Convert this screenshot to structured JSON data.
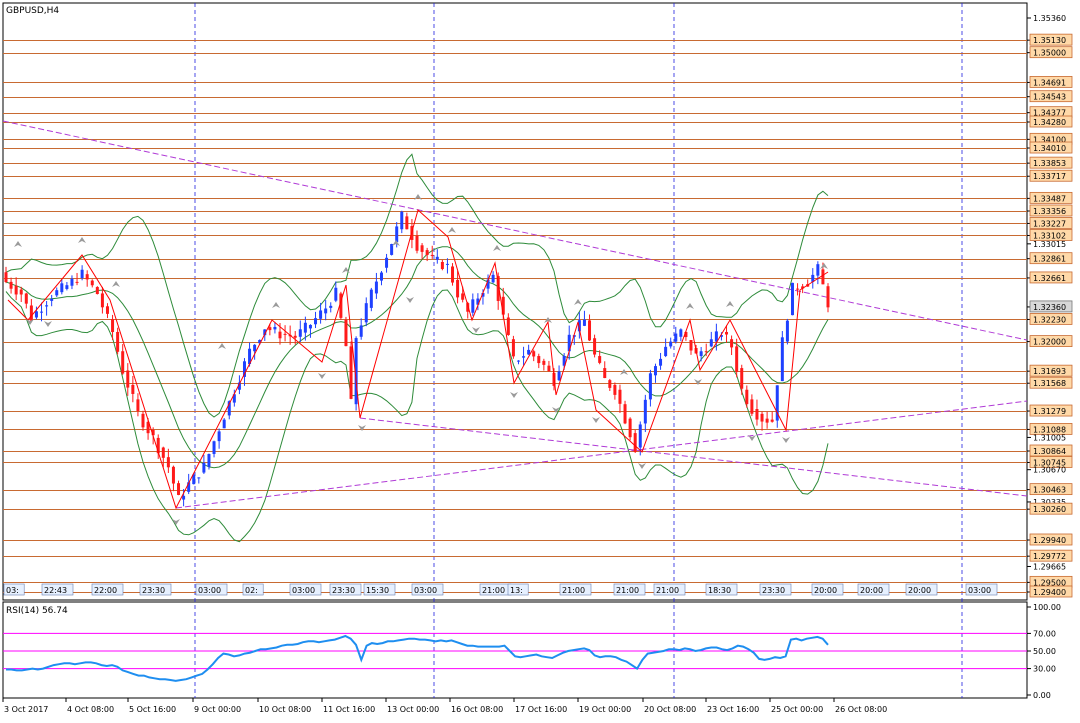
{
  "window": {
    "title": "GBPUSD,H4"
  },
  "colors": {
    "bull": "#1e40ff",
    "bear": "#ff1a1a",
    "level_line": "#c86a32",
    "trend_line": "#b03ad6",
    "zigzag": "#ff0000",
    "band": "#2e8b3a",
    "grid_v": "#2020e0",
    "rsi_line": "#1e8ef0",
    "rsi_level": "#ff00ff",
    "label_bg": "#ffd9a8"
  },
  "chart_data": {
    "type": "candlestick",
    "symbol": "GBPUSD",
    "timeframe": "H4",
    "title": "GBPUSD,H4",
    "y_axis_labels": [
      "1.35360",
      "1.35130",
      "1.35000",
      "1.34691",
      "1.34543",
      "1.34377",
      "1.34280",
      "1.34100",
      "1.34010",
      "1.33853",
      "1.33717",
      "1.33487",
      "1.33356",
      "1.33227",
      "1.33102",
      "1.33015",
      "1.32861",
      "1.32661",
      "1.32360",
      "1.32230",
      "1.32000",
      "1.31693",
      "1.31568",
      "1.31279",
      "1.31088",
      "1.31005",
      "1.30864",
      "1.30745",
      "1.30670",
      "1.30463",
      "1.30335",
      "1.30260",
      "1.29940",
      "1.29772",
      "1.29500",
      "1.29400",
      "1.29665"
    ],
    "price_levels": [
      1.3513,
      1.35,
      1.34691,
      1.34543,
      1.34377,
      1.3428,
      1.341,
      1.3401,
      1.33853,
      1.33717,
      1.33487,
      1.33356,
      1.33227,
      1.33102,
      1.32861,
      1.32661,
      1.3223,
      1.32,
      1.31693,
      1.31568,
      1.31279,
      1.31088,
      1.30864,
      1.30745,
      1.30463,
      1.3026,
      1.2994,
      1.29772,
      1.295,
      1.294
    ],
    "current_price": 1.3236,
    "x_labels": [
      "3 Oct 2017",
      "4 Oct 08:00",
      "5 Oct 16:00",
      "9 Oct 00:00",
      "10 Oct 08:00",
      "11 Oct 16:00",
      "13 Oct 00:00",
      "16 Oct 08:00",
      "17 Oct 16:00",
      "19 Oct 00:00",
      "20 Oct 08:00",
      "23 Oct 16:00",
      "25 Oct 00:00",
      "26 Oct 08:00"
    ],
    "time_strip": [
      "03:",
      "22:43",
      "22:00",
      "23:30",
      "03:00",
      "02:",
      "03:00",
      "23:30",
      "15:30",
      "03:00",
      "21:00",
      "13:",
      "21:00",
      "21:00",
      "21:00",
      "18:30",
      "23:30",
      "20:00",
      "20:00",
      "20:00",
      "03:00"
    ],
    "rsi": {
      "label": "RSI(14) 56.74",
      "levels": [
        70,
        50,
        30
      ],
      "axis_labels": [
        "100.00",
        "70.00",
        "50.00",
        "30.00",
        "0.00"
      ],
      "values": [
        29,
        29,
        28,
        28,
        29,
        30,
        29,
        30,
        32,
        34,
        35,
        36,
        36,
        35,
        36,
        37,
        37,
        36,
        34,
        33,
        34,
        32,
        28,
        26,
        24,
        22,
        22,
        20,
        19,
        18,
        18,
        17,
        16,
        17,
        18,
        20,
        22,
        24,
        29,
        35,
        42,
        47,
        46,
        44,
        45,
        47,
        48,
        50,
        52,
        52,
        53,
        54,
        56,
        57,
        57,
        58,
        60,
        61,
        61,
        60,
        61,
        62,
        63,
        65,
        67,
        64,
        57,
        40,
        56,
        59,
        58,
        59,
        61,
        61,
        62,
        63,
        64,
        64,
        63,
        63,
        62,
        61,
        62,
        61,
        62,
        60,
        58,
        56,
        56,
        55,
        55,
        55,
        55,
        55,
        56,
        50,
        44,
        43,
        44,
        45,
        46,
        44,
        43,
        42,
        45,
        48,
        50,
        51,
        52,
        53,
        51,
        45,
        43,
        44,
        44,
        43,
        40,
        38,
        34,
        30,
        40,
        47,
        48,
        49,
        50,
        52,
        52,
        51,
        53,
        52,
        50,
        51,
        53,
        54,
        54,
        52,
        51,
        53,
        56,
        55,
        52,
        48,
        41,
        40,
        41,
        43,
        42,
        44,
        63,
        64,
        62,
        64,
        65,
        66,
        64,
        57
      ]
    }
  }
}
